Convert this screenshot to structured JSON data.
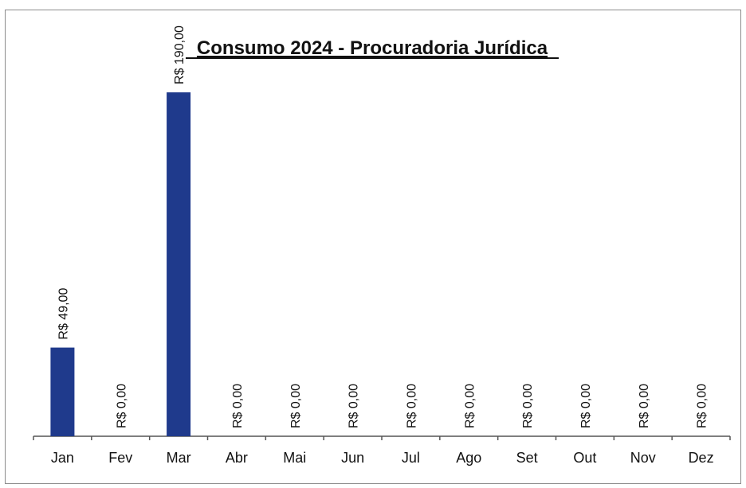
{
  "chart_data": {
    "type": "bar",
    "title": "Consumo 2024 - Procuradoria Jurídica",
    "categories": [
      "Jan",
      "Fev",
      "Mar",
      "Abr",
      "Mai",
      "Jun",
      "Jul",
      "Ago",
      "Set",
      "Out",
      "Nov",
      "Dez"
    ],
    "values": [
      49,
      0,
      190,
      0,
      0,
      0,
      0,
      0,
      0,
      0,
      0,
      0
    ],
    "data_labels": [
      "R$ 49,00",
      "R$ 0,00",
      "R$ 190,00",
      "R$ 0,00",
      "R$ 0,00",
      "R$ 0,00",
      "R$ 0,00",
      "R$ 0,00",
      "R$ 0,00",
      "R$ 0,00",
      "R$ 0,00",
      "R$ 0,00"
    ],
    "xlabel": "",
    "ylabel": "",
    "grid": false,
    "legend": "none",
    "bar_color": "#1f3a8c"
  }
}
